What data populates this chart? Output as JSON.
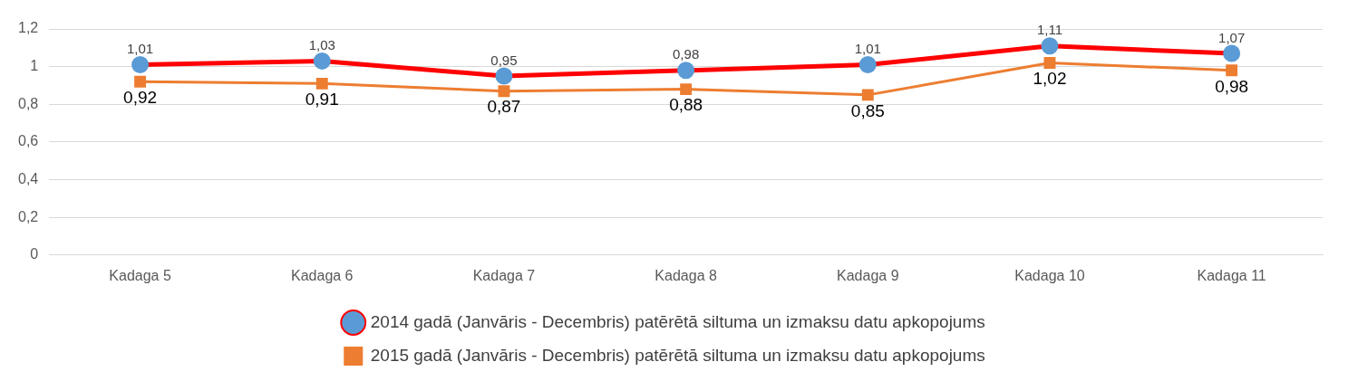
{
  "chart_data": {
    "type": "line",
    "categories": [
      "Kadaga 5",
      "Kadaga 6",
      "Kadaga 7",
      "Kadaga 8",
      "Kadaga 9",
      "Kadaga 10",
      "Kadaga 11"
    ],
    "series": [
      {
        "name": "2014 gadā (Janvāris - Decembris) patērētā siltuma un izmaksu datu apkopojums",
        "color": "#ff0000",
        "colors": [
          "#5b9bd5",
          "#5b9bd5",
          "#5b9bd5",
          "#5b9bd5",
          "#5b9bd5",
          "#5b9bd5",
          "#5b9bd5"
        ],
        "marker": "circle",
        "values": [
          1.01,
          1.03,
          0.95,
          0.98,
          1.01,
          1.11,
          1.07
        ],
        "value_labels": [
          "1,01",
          "1,03",
          "0,95",
          "0,98",
          "1,01",
          "1,11",
          "1,07"
        ]
      },
      {
        "name": "2015 gadā (Janvāris - Decembris) patērētā siltuma un izmaksu datu apkopojums",
        "color": "#ed7d31",
        "marker": "square",
        "values": [
          0.92,
          0.91,
          0.87,
          0.88,
          0.85,
          1.02,
          0.98
        ],
        "value_labels": [
          "0,92",
          "0,91",
          "0,87",
          "0,88",
          "0,85",
          "1,02",
          "0,98"
        ]
      }
    ],
    "ylim": [
      0,
      1.2
    ],
    "yticks": [
      0,
      {
        "value": 0.2,
        "label": "0,2"
      },
      {
        "value": 0.4,
        "label": "0,4"
      },
      {
        "value": 0.6,
        "label": "0,6"
      },
      {
        "value": 0.8,
        "label": "0,8"
      },
      1,
      {
        "value": 1.2,
        "label": "1,2"
      }
    ],
    "grid": "y",
    "legend": "bottom"
  }
}
